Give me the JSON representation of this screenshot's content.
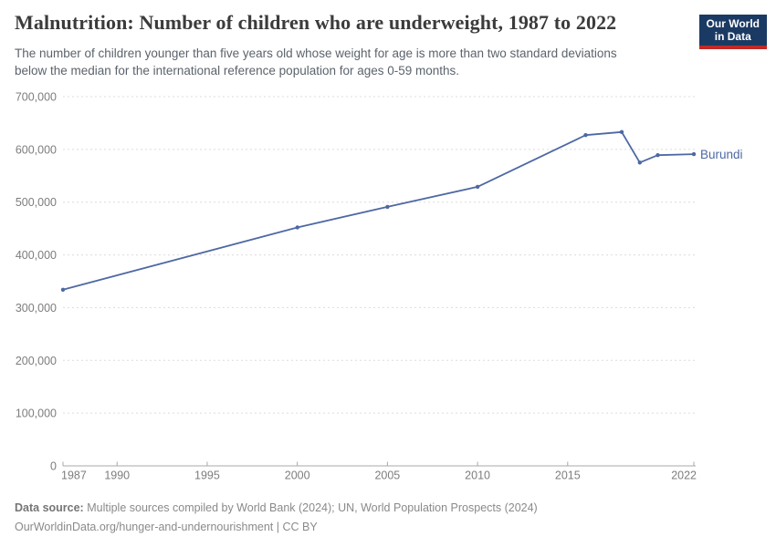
{
  "header": {
    "title": "Malnutrition: Number of children who are underweight, 1987 to 2022",
    "subtitle_line1": "The number of children younger than five years old whose weight for age is more than two standard deviations",
    "subtitle_line2": "below the median for the international reference population for ages 0-59 months."
  },
  "logo": {
    "line1": "Our World",
    "line2": "in Data",
    "bg_color": "#1b3a63",
    "stripe_color": "#c12a26"
  },
  "chart_data": {
    "type": "line",
    "title": "Malnutrition: Number of children who are underweight, 1987 to 2022",
    "x": [
      1987,
      2000,
      2005,
      2010,
      2016,
      2018,
      2019,
      2020,
      2022
    ],
    "series": [
      {
        "name": "Burundi",
        "color": "#4d68a3",
        "values": [
          334000,
          452000,
          491000,
          529000,
          627000,
          633000,
          575000,
          589000,
          591000
        ]
      }
    ],
    "xlim": [
      1987,
      2022
    ],
    "ylim": [
      0,
      700000
    ],
    "xticks": [
      1987,
      1990,
      1995,
      2000,
      2005,
      2010,
      2015,
      2022
    ],
    "xtick_labels": [
      "1987",
      "1990",
      "1995",
      "2000",
      "2005",
      "2010",
      "2015",
      "2022"
    ],
    "yticks": [
      0,
      100000,
      200000,
      300000,
      400000,
      500000,
      600000,
      700000
    ],
    "ytick_labels": [
      "0",
      "100,000",
      "200,000",
      "300,000",
      "400,000",
      "500,000",
      "600,000",
      "700,000"
    ],
    "grid": "horizontal-dashed",
    "legend_position": "end-of-line",
    "xlabel": "",
    "ylabel": ""
  },
  "footer": {
    "source_label": "Data source:",
    "source_text": " Multiple sources compiled by World Bank (2024); UN, World Population Prospects (2024)",
    "license_text": "OurWorldinData.org/hunger-and-undernourishment | CC BY"
  },
  "colors": {
    "line": "#4d68a3",
    "grid": "#dcdcdc",
    "axis": "#a8a8a8",
    "tick_label": "#7d7d7d",
    "title": "#3b3b3b",
    "subtitle": "#5b636b",
    "footer": "#8a8a8a"
  }
}
